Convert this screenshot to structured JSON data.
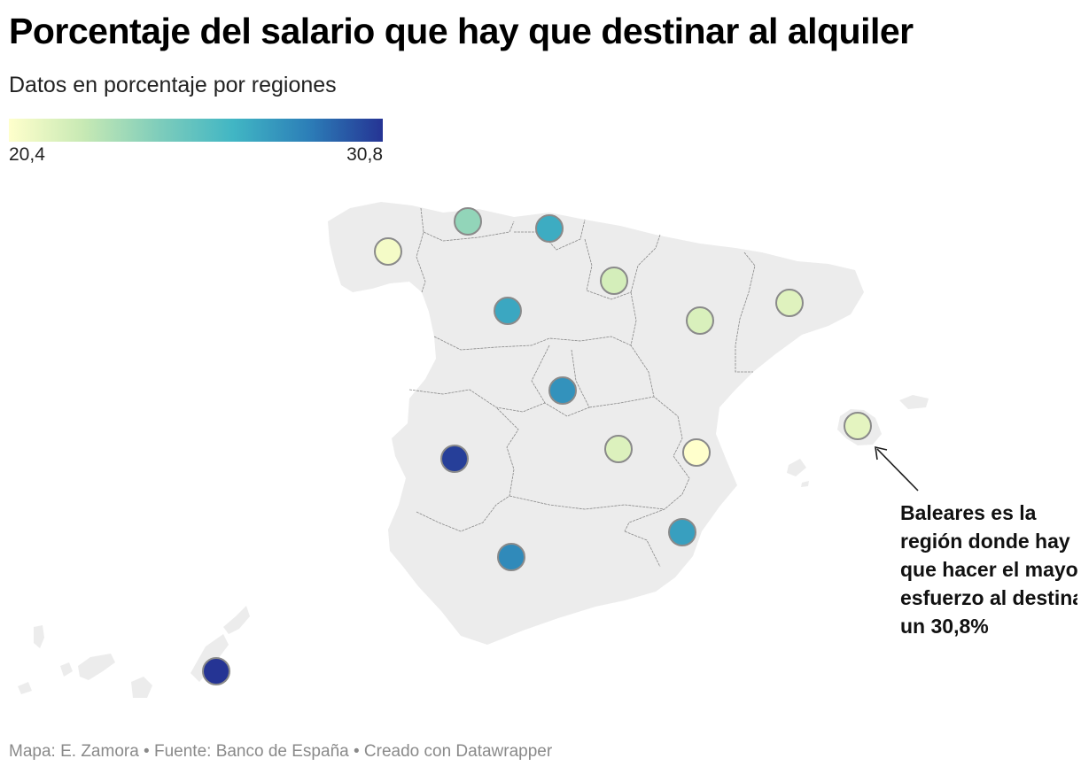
{
  "header": {
    "title": "Porcentaje del salario que hay que destinar al alquiler",
    "subtitle": "Datos en porcentaje por regiones"
  },
  "legend": {
    "min_label": "20,4",
    "max_label": "30,8",
    "min_value": 20.4,
    "max_value": 30.8,
    "colors": [
      "#ffffcc",
      "#c7e9b4",
      "#7fcdbb",
      "#41b6c4",
      "#2c7fb8",
      "#253494"
    ]
  },
  "map": {
    "land_color": "#ececec",
    "border_color": "#888888",
    "symbol_stroke": "#8a8a8a",
    "regions": [
      {
        "value": 20.8
      },
      {
        "value": 24.0
      },
      {
        "value": 27.0
      },
      {
        "value": 22.0
      },
      {
        "value": 21.8
      },
      {
        "value": 21.6
      },
      {
        "value": 28.0
      },
      {
        "value": 30.5
      },
      {
        "value": 21.7
      },
      {
        "value": 20.4
      },
      {
        "value": 27.5
      },
      {
        "value": 28.3
      },
      {
        "value": 21.4
      },
      {
        "value": 30.8
      },
      {
        "value": 27.2
      }
    ]
  },
  "annotation": {
    "lines": [
      "Baleares es la",
      "región donde hay",
      "que hacer el mayor",
      "esfuerzo al destinar",
      "un 30,8%"
    ]
  },
  "footer": {
    "text": "Mapa: E. Zamora • Fuente: Banco de España • Creado con Datawrapper"
  }
}
